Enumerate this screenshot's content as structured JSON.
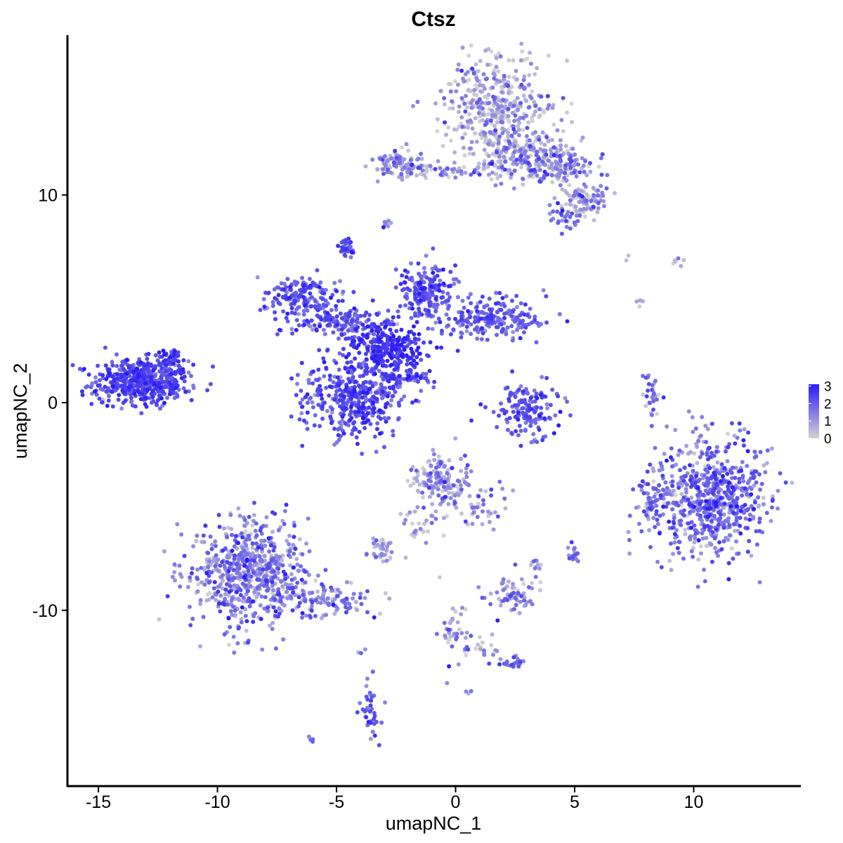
{
  "chart_data": {
    "type": "scatter",
    "title": "Ctsz",
    "xlabel": "umapNC_1",
    "ylabel": "umapNC_2",
    "xlim": [
      -16.3,
      14.5
    ],
    "ylim": [
      -18.5,
      17.7
    ],
    "x_ticks": [
      -15,
      -10,
      -5,
      0,
      5,
      10
    ],
    "x_tick_labels": [
      "-15",
      "-10",
      "-5",
      "0",
      "5",
      "10"
    ],
    "y_ticks": [
      -10,
      0,
      10
    ],
    "y_tick_labels": [
      "-10",
      "0",
      "10"
    ],
    "grid": false,
    "legend": {
      "placement": "right",
      "min": 0,
      "max": 3.1,
      "ticks": [
        0,
        1,
        2,
        3
      ],
      "tick_labels": [
        "0",
        "1",
        "2",
        "3"
      ],
      "low_color": "#d3d3d3",
      "high_color": "#2b1cf5"
    },
    "point_color_low": "#d3d3d3",
    "point_color_high": "#2b1cf5",
    "clusters": [
      {
        "cx": -13.2,
        "cy": 1.0,
        "sx": 1.0,
        "sy": 0.55,
        "n": 520,
        "expr": 2.2,
        "spread": 0.45
      },
      {
        "cx": -12.0,
        "cy": 2.0,
        "sx": 0.35,
        "sy": 0.35,
        "n": 40,
        "expr": 2.3,
        "spread": 0.4
      },
      {
        "cx": -4.2,
        "cy": 0.3,
        "sx": 1.1,
        "sy": 1.0,
        "n": 420,
        "expr": 2.2,
        "spread": 0.5
      },
      {
        "cx": -2.9,
        "cy": 2.7,
        "sx": 0.8,
        "sy": 0.6,
        "n": 260,
        "expr": 2.6,
        "spread": 0.35
      },
      {
        "cx": -6.5,
        "cy": 5.2,
        "sx": 0.9,
        "sy": 0.45,
        "n": 160,
        "expr": 2.0,
        "spread": 0.5
      },
      {
        "cx": -4.8,
        "cy": 3.9,
        "sx": 1.0,
        "sy": 0.35,
        "n": 150,
        "expr": 2.0,
        "spread": 0.5
      },
      {
        "cx": -1.2,
        "cy": 5.3,
        "sx": 0.6,
        "sy": 0.7,
        "n": 180,
        "expr": 2.0,
        "spread": 0.5
      },
      {
        "cx": 1.5,
        "cy": 4.0,
        "sx": 1.2,
        "sy": 0.5,
        "n": 220,
        "expr": 1.9,
        "spread": 0.5
      },
      {
        "cx": -4.6,
        "cy": 7.4,
        "sx": 0.15,
        "sy": 0.2,
        "n": 30,
        "expr": 2.3,
        "spread": 0.4
      },
      {
        "cx": -2.0,
        "cy": 1.2,
        "sx": 0.6,
        "sy": 0.2,
        "n": 45,
        "expr": 2.2,
        "spread": 0.4
      },
      {
        "cx": 3.0,
        "cy": -0.3,
        "sx": 0.7,
        "sy": 0.6,
        "n": 150,
        "expr": 2.0,
        "spread": 0.5
      },
      {
        "cx": 8.2,
        "cy": 0.3,
        "sx": 0.15,
        "sy": 0.5,
        "n": 30,
        "expr": 1.6,
        "spread": 0.6
      },
      {
        "cx": 10.7,
        "cy": -4.5,
        "sx": 1.3,
        "sy": 1.4,
        "n": 700,
        "expr": 1.6,
        "spread": 0.75
      },
      {
        "cx": 8.3,
        "cy": -4.8,
        "sx": 0.3,
        "sy": 0.6,
        "n": 40,
        "expr": 1.7,
        "spread": 0.6
      },
      {
        "cx": -8.6,
        "cy": -8.2,
        "sx": 1.2,
        "sy": 1.2,
        "n": 650,
        "expr": 1.3,
        "spread": 0.8
      },
      {
        "cx": -5.5,
        "cy": -9.6,
        "sx": 1.0,
        "sy": 0.4,
        "n": 120,
        "expr": 1.2,
        "spread": 0.8
      },
      {
        "cx": -0.6,
        "cy": -3.8,
        "sx": 0.6,
        "sy": 0.6,
        "n": 150,
        "expr": 0.9,
        "spread": 0.8
      },
      {
        "cx": 1.0,
        "cy": -5.0,
        "sx": 0.6,
        "sy": 0.5,
        "n": 40,
        "expr": 1.0,
        "spread": 0.8
      },
      {
        "cx": -1.5,
        "cy": -5.8,
        "sx": 0.4,
        "sy": 0.5,
        "n": 30,
        "expr": 0.8,
        "spread": 0.8
      },
      {
        "cx": -3.2,
        "cy": -7.0,
        "sx": 0.3,
        "sy": 0.3,
        "n": 40,
        "expr": 0.6,
        "spread": 0.7
      },
      {
        "cx": 2.5,
        "cy": -9.2,
        "sx": 0.5,
        "sy": 0.5,
        "n": 70,
        "expr": 1.2,
        "spread": 0.8
      },
      {
        "cx": 2.3,
        "cy": -12.5,
        "sx": 0.3,
        "sy": 0.2,
        "n": 25,
        "expr": 1.8,
        "spread": 0.5
      },
      {
        "cx": 0.0,
        "cy": -11.2,
        "sx": 0.4,
        "sy": 0.9,
        "n": 40,
        "expr": 1.0,
        "spread": 0.8
      },
      {
        "cx": 1.2,
        "cy": -11.8,
        "sx": 0.4,
        "sy": 0.2,
        "n": 15,
        "expr": 0.7,
        "spread": 0.7
      },
      {
        "cx": -3.6,
        "cy": -14.8,
        "sx": 0.2,
        "sy": 0.7,
        "n": 40,
        "expr": 1.9,
        "spread": 0.5
      },
      {
        "cx": 5.0,
        "cy": -7.3,
        "sx": 0.15,
        "sy": 0.2,
        "n": 15,
        "expr": 1.3,
        "spread": 0.6
      },
      {
        "cx": 3.3,
        "cy": -7.8,
        "sx": 0.2,
        "sy": 0.2,
        "n": 10,
        "expr": 0.8,
        "spread": 0.7
      },
      {
        "cx": 1.8,
        "cy": 14.2,
        "sx": 1.1,
        "sy": 1.3,
        "n": 450,
        "expr": 0.6,
        "spread": 0.8
      },
      {
        "cx": 2.5,
        "cy": 11.8,
        "sx": 0.9,
        "sy": 0.5,
        "n": 160,
        "expr": 0.7,
        "spread": 0.8
      },
      {
        "cx": 4.5,
        "cy": 11.5,
        "sx": 0.8,
        "sy": 0.6,
        "n": 160,
        "expr": 1.1,
        "spread": 0.8
      },
      {
        "cx": 5.4,
        "cy": 9.8,
        "sx": 0.5,
        "sy": 0.4,
        "n": 90,
        "expr": 0.8,
        "spread": 0.8
      },
      {
        "cx": 4.6,
        "cy": 9.0,
        "sx": 0.3,
        "sy": 0.3,
        "n": 30,
        "expr": 1.5,
        "spread": 0.6
      },
      {
        "cx": -2.3,
        "cy": 11.5,
        "sx": 0.6,
        "sy": 0.35,
        "n": 110,
        "expr": 0.8,
        "spread": 0.8
      },
      {
        "cx": -0.5,
        "cy": 11.2,
        "sx": 0.8,
        "sy": 0.15,
        "n": 35,
        "expr": 1.3,
        "spread": 0.7
      },
      {
        "cx": -2.9,
        "cy": 8.6,
        "sx": 0.1,
        "sy": 0.2,
        "n": 8,
        "expr": 1.2,
        "spread": 0.6
      },
      {
        "cx": 9.5,
        "cy": 6.8,
        "sx": 0.4,
        "sy": 0.2,
        "n": 6,
        "expr": 0.4,
        "spread": 0.6
      },
      {
        "cx": 7.7,
        "cy": 4.7,
        "sx": 0.1,
        "sy": 0.2,
        "n": 4,
        "expr": 0.3,
        "spread": 0.4
      },
      {
        "cx": 7.1,
        "cy": 6.9,
        "sx": 0.1,
        "sy": 0.1,
        "n": 2,
        "expr": 0.2,
        "spread": 0.3
      },
      {
        "cx": -6.1,
        "cy": -16.2,
        "sx": 0.1,
        "sy": 0.1,
        "n": 4,
        "expr": 1.7,
        "spread": 0.4
      },
      {
        "cx": 0.6,
        "cy": -14.0,
        "sx": 0.1,
        "sy": 0.1,
        "n": 3,
        "expr": 1.2,
        "spread": 0.5
      },
      {
        "cx": -4.0,
        "cy": -11.9,
        "sx": 0.1,
        "sy": 0.1,
        "n": 3,
        "expr": 1.5,
        "spread": 0.5
      }
    ]
  }
}
